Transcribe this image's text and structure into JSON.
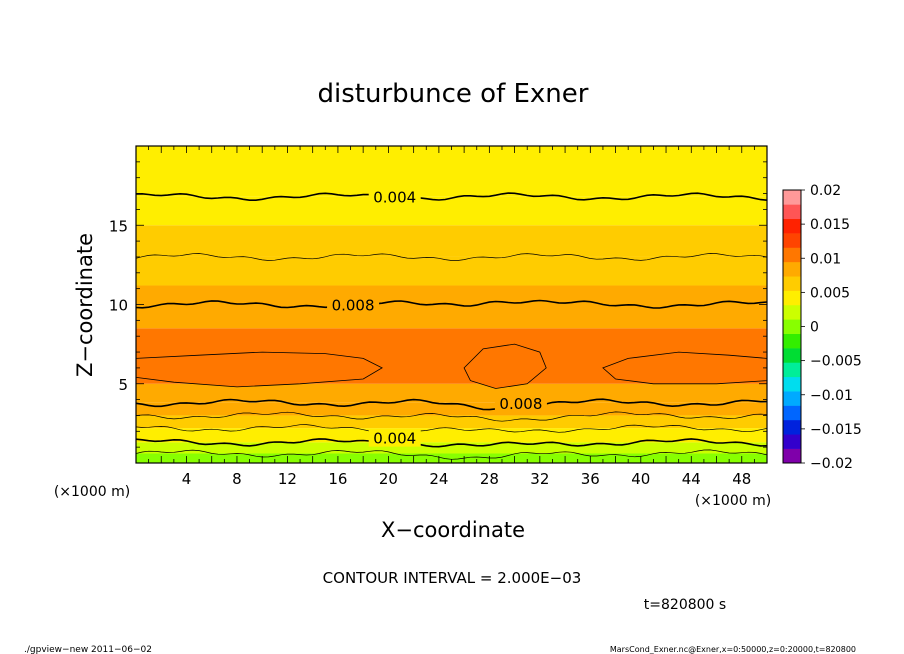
{
  "chart_data": {
    "type": "heatmap",
    "title": "disturbunce of Exner",
    "xlabel": "X−coordinate",
    "ylabel": "Z−coordinate",
    "x_unit": "(×1000 m)",
    "x_unit_right": "(×1000 m)",
    "y_unit": "(×1000 m)",
    "xlim": [
      0,
      50
    ],
    "ylim": [
      0,
      20
    ],
    "x_ticks": [
      4,
      8,
      12,
      16,
      20,
      24,
      28,
      32,
      36,
      40,
      44,
      48
    ],
    "y_ticks": [
      5,
      10,
      15
    ],
    "colorbar": {
      "ticks": [
        "0.02",
        "0.015",
        "0.01",
        "0.005",
        "0",
        "−0.005",
        "−0.01",
        "−0.015",
        "−0.02"
      ],
      "range": [
        -0.02,
        0.02
      ],
      "colors": [
        "#7f00aa",
        "#3300cc",
        "#0022dd",
        "#0066ff",
        "#00aaff",
        "#00ddee",
        "#00ee99",
        "#00dd33",
        "#33ee00",
        "#88ff00",
        "#ccff00",
        "#ffee00",
        "#ffcc00",
        "#ffaa00",
        "#ff7700",
        "#ff4400",
        "#ff2200",
        "#ff5555",
        "#ff9999"
      ]
    },
    "contour_labels": [
      {
        "text": "0.004",
        "x": 20.5,
        "z": 16.8
      },
      {
        "text": "0.008",
        "x": 17.2,
        "z": 10.0
      },
      {
        "text": "0.008",
        "x": 30.5,
        "z": 3.8
      },
      {
        "text": "0.004",
        "x": 20.5,
        "z": 1.6
      }
    ],
    "value_bands": [
      {
        "z0": 0.0,
        "z1": 0.6,
        "value": 0.001
      },
      {
        "z0": 0.6,
        "z1": 1.3,
        "value": 0.003
      },
      {
        "z0": 1.3,
        "z1": 2.2,
        "value": 0.005
      },
      {
        "z0": 2.2,
        "z1": 3.0,
        "value": 0.007
      },
      {
        "z0": 3.0,
        "z1": 3.8,
        "value": 0.008
      },
      {
        "z0": 3.8,
        "z1": 5.0,
        "value": 0.009
      },
      {
        "z0": 5.0,
        "z1": 8.5,
        "value": 0.0095
      },
      {
        "z0": 8.5,
        "z1": 10.0,
        "value": 0.009
      },
      {
        "z0": 10.0,
        "z1": 11.2,
        "value": 0.008
      },
      {
        "z0": 11.2,
        "z1": 13.0,
        "value": 0.0065
      },
      {
        "z0": 13.0,
        "z1": 15.0,
        "value": 0.0055
      },
      {
        "z0": 15.0,
        "z1": 16.8,
        "value": 0.0045
      },
      {
        "z0": 16.8,
        "z1": 20.0,
        "value": 0.0035
      }
    ],
    "maxima_value": 0.0105,
    "contour_interval_text": "CONTOUR INTERVAL = 2.000E−03",
    "time_text": "t=820800 s"
  },
  "footer": {
    "left": "./gpview−new  2011−06−02",
    "right": "MarsCond_Exner.nc@Exner,x=0:50000,z=0:20000,t=820800"
  }
}
